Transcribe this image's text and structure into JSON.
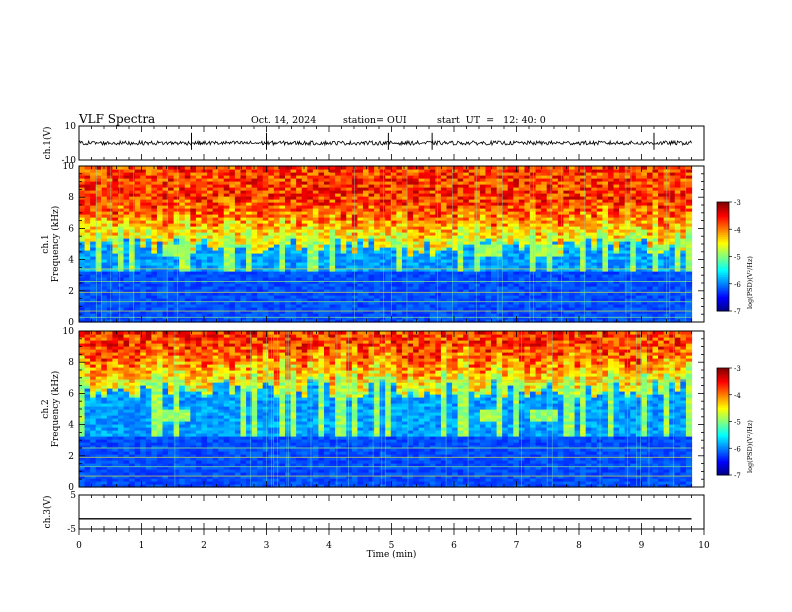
{
  "header": {
    "title": "VLF Spectra",
    "date": "Oct. 14, 2024",
    "station": "station= OUI",
    "start": "start  UT  =   12: 40: 0"
  },
  "chart_data": [
    {
      "type": "line",
      "panel": "ch1-waveform",
      "ylabel": "ch.1(V)",
      "ylim": [
        -10,
        10
      ],
      "yticks": [
        "10",
        "-10"
      ],
      "xlim": [
        0,
        10
      ],
      "series": [
        {
          "baseline": 0,
          "noise_amplitude": 1.2
        }
      ],
      "spikes": [
        1.8,
        3.0,
        4.95,
        5.65,
        9.2
      ]
    },
    {
      "type": "heatmap",
      "panel": "ch1-spectrogram",
      "ylabel_top": "ch.1",
      "ylabel": "Frequency (kHz)",
      "ylim": [
        0,
        10
      ],
      "yticks": [
        "0",
        "2",
        "4",
        "6",
        "8",
        "10"
      ],
      "xlim": [
        0,
        10
      ],
      "data_end_min": 9.8,
      "colorbar": {
        "min": -7,
        "max": -3,
        "ticks": [
          "-3",
          "-4",
          "-5",
          "-6",
          "-7"
        ],
        "label": "log(PSD)(V²/Hz)"
      },
      "features": {
        "hiss_boundary_khz": 5.0,
        "emission_patches": [
          {
            "t": [
              1.35,
              1.75
            ],
            "f": 4.6
          },
          {
            "t": [
              6.4,
              6.8
            ],
            "f": 4.6
          },
          {
            "t": [
              7.2,
              7.7
            ],
            "f": 4.6
          }
        ],
        "line_freqs_khz": [
          3.4,
          2.6,
          1.9,
          1.3,
          0.7,
          0.3
        ]
      }
    },
    {
      "type": "heatmap",
      "panel": "ch2-spectrogram",
      "ylabel_top": "ch.2",
      "ylabel": "Frequency (kHz)",
      "ylim": [
        0,
        10
      ],
      "yticks": [
        "0",
        "2",
        "4",
        "6",
        "8",
        "10"
      ],
      "xlim": [
        0,
        10
      ],
      "data_end_min": 9.8,
      "colorbar": {
        "min": -7,
        "max": -3,
        "ticks": [
          "-3",
          "-4",
          "-5",
          "-6",
          "-7"
        ],
        "label": "log(PSD)(V²/Hz)"
      },
      "features": {
        "hiss_boundary_khz": 6.5,
        "emission_patches": [
          {
            "t": [
              1.3,
              1.75
            ],
            "f": 4.6
          },
          {
            "t": [
              6.4,
              6.8
            ],
            "f": 4.6
          },
          {
            "t": [
              7.2,
              7.7
            ],
            "f": 4.6
          }
        ],
        "line_freqs_khz": [
          6.8,
          2.5,
          1.9,
          1.3,
          0.7
        ]
      }
    },
    {
      "type": "line",
      "panel": "ch3-waveform",
      "ylabel": "ch.3(V)",
      "ylim": [
        -5,
        5
      ],
      "yticks": [
        "5",
        "-5"
      ],
      "xlim": [
        0,
        10
      ],
      "xticks": [
        "0",
        "1",
        "2",
        "3",
        "4",
        "5",
        "6",
        "7",
        "8",
        "9",
        "10"
      ],
      "xlabel": "Time  (min)",
      "series": [
        {
          "constant": -2.0
        }
      ]
    }
  ]
}
